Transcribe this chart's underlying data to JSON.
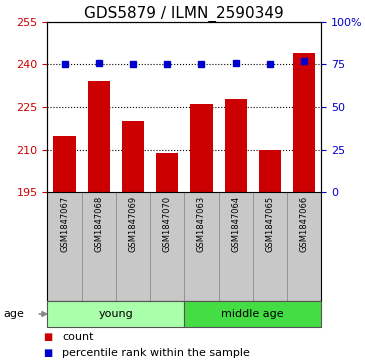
{
  "title": "GDS5879 / ILMN_2590349",
  "samples": [
    "GSM1847067",
    "GSM1847068",
    "GSM1847069",
    "GSM1847070",
    "GSM1847063",
    "GSM1847064",
    "GSM1847065",
    "GSM1847066"
  ],
  "counts": [
    215,
    234,
    220,
    209,
    226,
    228,
    210,
    244
  ],
  "percentiles": [
    75,
    76,
    75,
    75,
    75,
    76,
    75,
    77
  ],
  "ylim_left": [
    195,
    255
  ],
  "ylim_right": [
    0,
    100
  ],
  "yticks_left": [
    195,
    210,
    225,
    240,
    255
  ],
  "yticks_right": [
    0,
    25,
    50,
    75,
    100
  ],
  "bar_color": "#cc0000",
  "dot_color": "#0000cc",
  "bar_width": 0.65,
  "groups": [
    {
      "label": "young",
      "start": 0,
      "end": 4,
      "color": "#aaffaa"
    },
    {
      "label": "middle age",
      "start": 4,
      "end": 8,
      "color": "#44dd44"
    }
  ],
  "age_label": "age",
  "ylabel_left_color": "#cc0000",
  "ylabel_right_color": "#0000cc",
  "grid_color": "black",
  "label_count": "count",
  "label_percentile": "percentile rank within the sample",
  "sample_box_color": "#c8c8c8",
  "title_fontsize": 11,
  "tick_fontsize": 8,
  "sample_fontsize": 6,
  "group_fontsize": 8,
  "legend_fontsize": 8
}
